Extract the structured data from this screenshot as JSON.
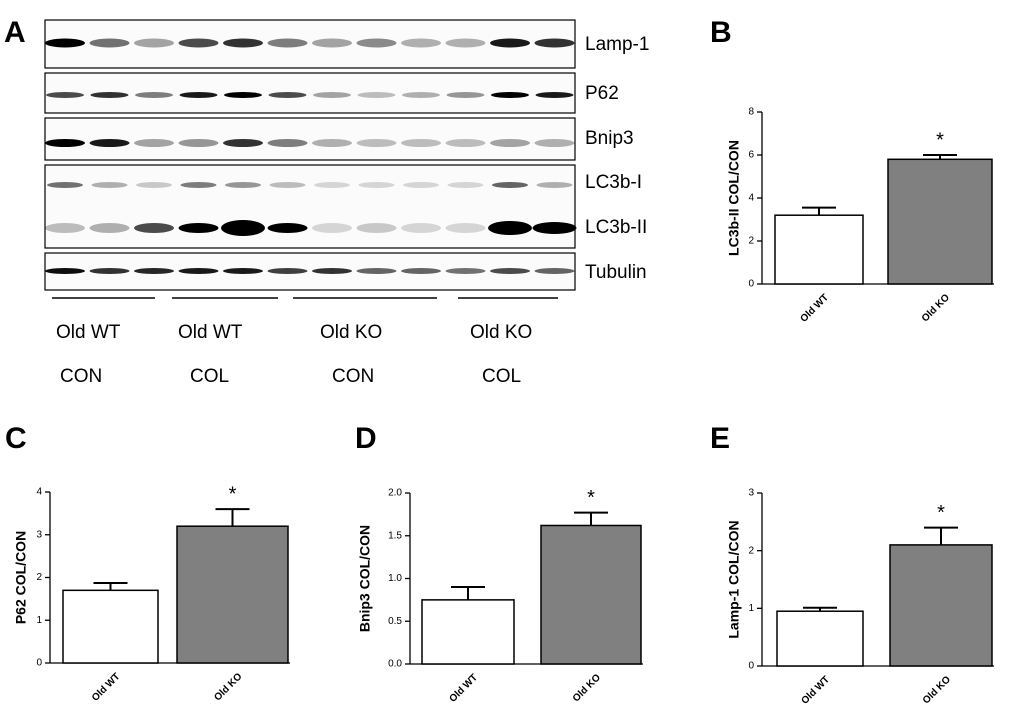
{
  "blot": {
    "panel": "A",
    "rows": [
      "Lamp-1",
      "P62",
      "Bnip3",
      "LC3b-I",
      "LC3b-II",
      "Tubulin"
    ],
    "groups": [
      {
        "line1": "Old WT",
        "line2": "CON"
      },
      {
        "line1": "Old WT",
        "line2": "COL"
      },
      {
        "line1": "Old KO",
        "line2": "CON"
      },
      {
        "line1": "Old KO",
        "line2": "COL"
      }
    ]
  },
  "chart_data": [
    {
      "type": "bar",
      "panel": "B",
      "y_label": "LC3b-II COL/CON",
      "categories": [
        "Old WT",
        "Old KO"
      ],
      "values": [
        3.2,
        5.8
      ],
      "errors": [
        0.35,
        0.2
      ],
      "colors": [
        "#ffffff",
        "#808080"
      ],
      "annotation": "*",
      "ylim": [
        0,
        8
      ],
      "yticks": [
        0,
        2,
        4,
        6,
        8
      ]
    },
    {
      "type": "bar",
      "panel": "C",
      "y_label": "P62 COL/CON",
      "categories": [
        "Old WT",
        "Old KO"
      ],
      "values": [
        1.7,
        3.2
      ],
      "errors": [
        0.17,
        0.4
      ],
      "colors": [
        "#ffffff",
        "#808080"
      ],
      "annotation": "*",
      "ylim": [
        0,
        4
      ],
      "yticks": [
        0,
        1,
        2,
        3,
        4
      ]
    },
    {
      "type": "bar",
      "panel": "D",
      "y_label": "Bnip3 COL/CON",
      "categories": [
        "Old WT",
        "Old KO"
      ],
      "values": [
        0.75,
        1.62
      ],
      "errors": [
        0.15,
        0.15
      ],
      "colors": [
        "#ffffff",
        "#808080"
      ],
      "annotation": "*",
      "ylim": [
        0,
        2
      ],
      "yticks": [
        {
          "value": 0,
          "label": "0.0"
        },
        0.5,
        {
          "value": 1,
          "label": "1.0"
        },
        1.5,
        {
          "value": 2,
          "label": "2.0"
        }
      ]
    },
    {
      "type": "bar",
      "panel": "E",
      "y_label": "Lamp-1 COL/CON",
      "categories": [
        "Old WT",
        "Old KO"
      ],
      "values": [
        0.95,
        2.1
      ],
      "errors": [
        0.06,
        0.3
      ],
      "colors": [
        "#ffffff",
        "#808080"
      ],
      "annotation": "*",
      "ylim": [
        0,
        3
      ],
      "yticks": [
        0,
        1,
        2,
        3
      ]
    }
  ]
}
